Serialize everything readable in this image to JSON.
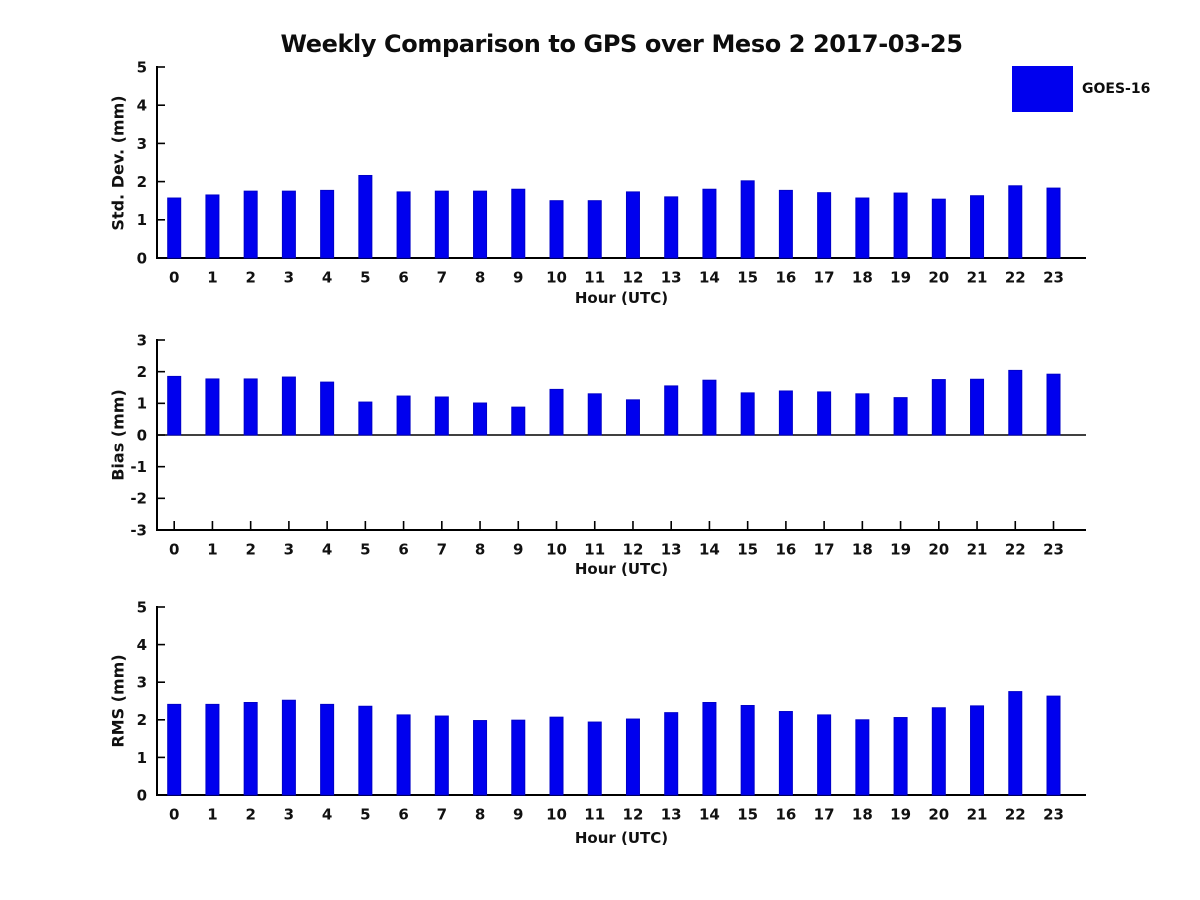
{
  "figure": {
    "title": "Weekly Comparison to GPS over Meso 2 2017-03-25",
    "background": "#ffffff",
    "legend": {
      "label": "GOES-16",
      "color": "#0000EE",
      "position": "top-right"
    }
  },
  "chart_data": [
    {
      "type": "bar",
      "ylabel": "Std. Dev. (mm)",
      "xlabel": "Hour (UTC)",
      "categories": [
        "0",
        "1",
        "2",
        "3",
        "4",
        "5",
        "6",
        "7",
        "8",
        "9",
        "10",
        "11",
        "12",
        "13",
        "14",
        "15",
        "16",
        "17",
        "18",
        "19",
        "20",
        "21",
        "22",
        "23"
      ],
      "series": [
        {
          "name": "GOES-16",
          "color": "#0000EE",
          "values": [
            1.57,
            1.65,
            1.75,
            1.75,
            1.77,
            2.16,
            1.73,
            1.75,
            1.75,
            1.8,
            1.5,
            1.5,
            1.73,
            1.6,
            1.8,
            2.02,
            1.77,
            1.71,
            1.57,
            1.7,
            1.54,
            1.63,
            1.89,
            1.83
          ]
        }
      ],
      "ylim": [
        0,
        5
      ],
      "yticks": [
        0,
        1,
        2,
        3,
        4,
        5
      ],
      "grid": false,
      "legend_position": "upper right"
    },
    {
      "type": "bar",
      "ylabel": "Bias (mm)",
      "xlabel": "Hour (UTC)",
      "categories": [
        "0",
        "1",
        "2",
        "3",
        "4",
        "5",
        "6",
        "7",
        "8",
        "9",
        "10",
        "11",
        "12",
        "13",
        "14",
        "15",
        "16",
        "17",
        "18",
        "19",
        "20",
        "21",
        "22",
        "23"
      ],
      "series": [
        {
          "name": "GOES-16",
          "color": "#0000EE",
          "values": [
            1.85,
            1.77,
            1.77,
            1.83,
            1.67,
            1.04,
            1.23,
            1.2,
            1.01,
            0.88,
            1.44,
            1.3,
            1.11,
            1.55,
            1.73,
            1.33,
            1.39,
            1.36,
            1.3,
            1.18,
            1.75,
            1.76,
            2.04,
            1.92
          ]
        }
      ],
      "ylim": [
        -3,
        3
      ],
      "yticks": [
        -3,
        -2,
        -1,
        0,
        1,
        2,
        3
      ],
      "zero_line": true,
      "grid": false
    },
    {
      "type": "bar",
      "ylabel": "RMS (mm)",
      "xlabel": "Hour (UTC)",
      "categories": [
        "0",
        "1",
        "2",
        "3",
        "4",
        "5",
        "6",
        "7",
        "8",
        "9",
        "10",
        "11",
        "12",
        "13",
        "14",
        "15",
        "16",
        "17",
        "18",
        "19",
        "20",
        "21",
        "22",
        "23"
      ],
      "series": [
        {
          "name": "GOES-16",
          "color": "#0000EE",
          "values": [
            2.41,
            2.41,
            2.46,
            2.52,
            2.41,
            2.36,
            2.13,
            2.1,
            1.98,
            1.99,
            2.07,
            1.94,
            2.02,
            2.19,
            2.46,
            2.38,
            2.22,
            2.13,
            2.0,
            2.06,
            2.32,
            2.37,
            2.75,
            2.63
          ]
        }
      ],
      "ylim": [
        0,
        5
      ],
      "yticks": [
        0,
        1,
        2,
        3,
        4,
        5
      ],
      "grid": false
    }
  ]
}
